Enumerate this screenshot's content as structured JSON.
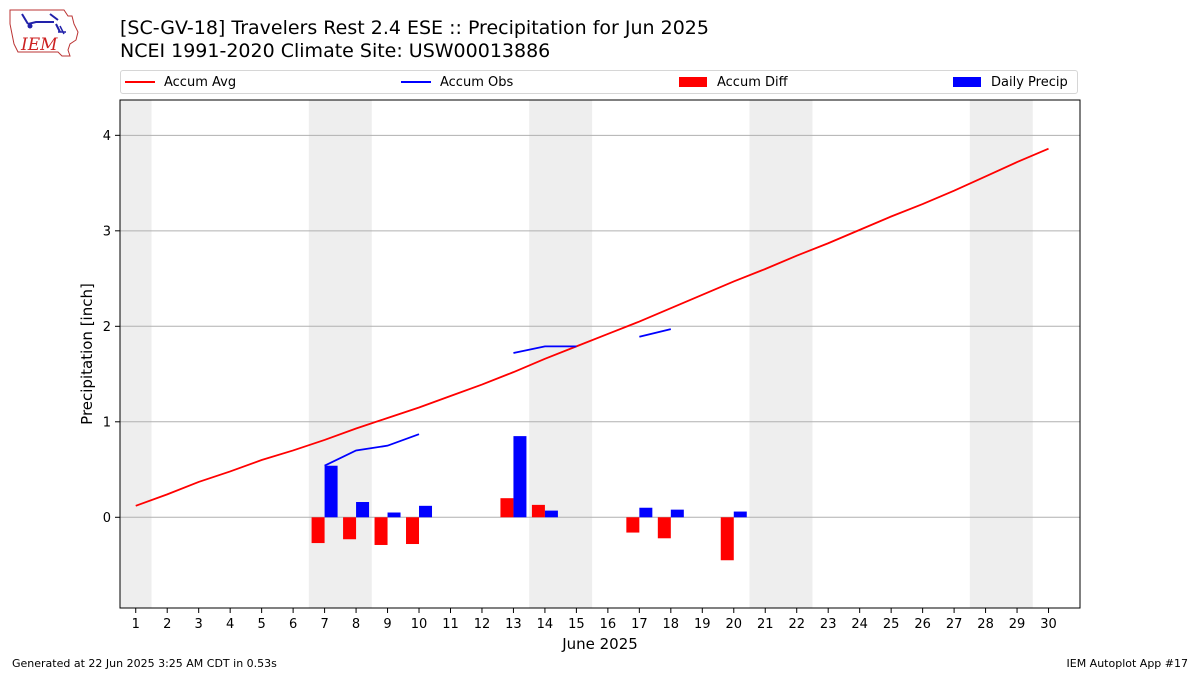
{
  "header": {
    "logo_text": "IEM",
    "title_line1": "[SC-GV-18] Travelers Rest 2.4 ESE :: Precipitation for Jun 2025",
    "title_line2": "NCEI 1991-2020 Climate Site: USW00013886"
  },
  "legend": [
    {
      "label": "Accum Avg",
      "kind": "line",
      "color": "#ff0000"
    },
    {
      "label": "Accum Obs",
      "kind": "line",
      "color": "#0000ff"
    },
    {
      "label": "Accum Diff",
      "kind": "patch",
      "color": "#ff0000"
    },
    {
      "label": "Daily Precip",
      "kind": "patch",
      "color": "#0000ff"
    }
  ],
  "footer": {
    "left": "Generated at 22 Jun 2025 3:25 AM CDT in 0.53s",
    "right": "IEM Autoplot App #17"
  },
  "chart_data": {
    "type": "bar",
    "xlabel": "June 2025",
    "ylabel": "Precipitation [inch]",
    "xlim": [
      0.5,
      31.0
    ],
    "ylim": [
      -0.95,
      4.37
    ],
    "yticks": [
      0,
      1,
      2,
      3,
      4
    ],
    "days": [
      1,
      2,
      3,
      4,
      5,
      6,
      7,
      8,
      9,
      10,
      11,
      12,
      13,
      14,
      15,
      16,
      17,
      18,
      19,
      20,
      21,
      22,
      23,
      24,
      25,
      26,
      27,
      28,
      29,
      30
    ],
    "weekend_shading": [
      [
        0.5,
        1.5
      ],
      [
        6.5,
        8.5
      ],
      [
        13.5,
        15.5
      ],
      [
        20.5,
        22.5
      ],
      [
        27.5,
        29.5
      ]
    ],
    "grid": "horizontal",
    "legend_position": "top",
    "series": [
      {
        "name": "Accum Avg",
        "type": "line",
        "color": "#ff0000",
        "x": [
          1,
          2,
          3,
          4,
          5,
          6,
          7,
          8,
          9,
          10,
          11,
          12,
          13,
          14,
          15,
          16,
          17,
          18,
          19,
          20,
          21,
          22,
          23,
          24,
          25,
          26,
          27,
          28,
          29,
          30
        ],
        "values": [
          0.12,
          0.24,
          0.37,
          0.48,
          0.6,
          0.7,
          0.81,
          0.93,
          1.04,
          1.15,
          1.27,
          1.39,
          1.52,
          1.66,
          1.79,
          1.92,
          2.05,
          2.19,
          2.33,
          2.47,
          2.6,
          2.74,
          2.87,
          3.01,
          3.15,
          3.28,
          3.42,
          3.57,
          3.72,
          3.86
        ]
      },
      {
        "name": "Accum Obs",
        "type": "line",
        "color": "#0000ff",
        "segments": [
          {
            "x": [
              7,
              8,
              9,
              10
            ],
            "values": [
              0.54,
              0.7,
              0.75,
              0.87
            ]
          },
          {
            "x": [
              13,
              14,
              15
            ],
            "values": [
              1.72,
              1.79,
              1.79
            ]
          },
          {
            "x": [
              17,
              18
            ],
            "values": [
              1.89,
              1.97
            ]
          }
        ]
      },
      {
        "name": "Accum Diff",
        "type": "bar",
        "color": "#ff0000",
        "x": [
          7,
          8,
          9,
          10,
          13,
          14,
          17,
          18,
          20
        ],
        "values": [
          -0.27,
          -0.23,
          -0.29,
          -0.28,
          0.2,
          0.13,
          -0.16,
          -0.22,
          -0.45
        ]
      },
      {
        "name": "Daily Precip",
        "type": "bar",
        "color": "#0000ff",
        "x": [
          7,
          8,
          9,
          10,
          13,
          14,
          17,
          18,
          20
        ],
        "values": [
          0.54,
          0.16,
          0.05,
          0.12,
          0.85,
          0.07,
          0.1,
          0.08,
          0.06
        ]
      }
    ]
  }
}
